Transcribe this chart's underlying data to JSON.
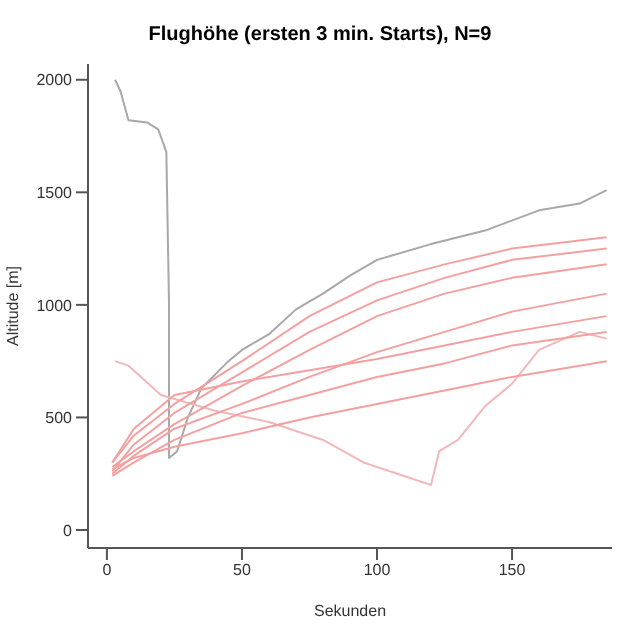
{
  "chart_data": {
    "type": "line",
    "title": "Flughöhe (ersten 3 min. Starts), N=9",
    "xlabel": "Sekunden",
    "ylabel": "Altitude [m]",
    "xlim": [
      -7,
      187
    ],
    "ylim": [
      -80,
      2070
    ],
    "xticks": [
      0,
      50,
      100,
      150
    ],
    "yticks": [
      0,
      500,
      1000,
      1500,
      2000
    ],
    "marker": "none",
    "line_style": "solid",
    "series": [
      {
        "color": "#a8a8a8",
        "x": [
          3,
          5,
          8,
          15,
          19,
          22,
          23,
          23,
          26,
          30,
          35,
          45,
          50,
          60,
          70,
          80,
          90,
          100,
          120,
          140,
          160,
          175,
          185
        ],
        "values": [
          2000,
          1950,
          1820,
          1810,
          1780,
          1680,
          1000,
          320,
          350,
          500,
          630,
          750,
          800,
          870,
          980,
          1050,
          1130,
          1200,
          1270,
          1330,
          1420,
          1450,
          1510
        ]
      },
      {
        "color": "#f0b8b8",
        "x": [
          3,
          8,
          20,
          40,
          60,
          80,
          95,
          120,
          123,
          130,
          140,
          150,
          160,
          175,
          185
        ],
        "values": [
          750,
          730,
          600,
          530,
          480,
          400,
          300,
          200,
          350,
          400,
          550,
          650,
          800,
          880,
          850
        ]
      },
      {
        "color": "#f4a0a0",
        "x": [
          2,
          10,
          25,
          50,
          75,
          100,
          125,
          150,
          185
        ],
        "values": [
          300,
          420,
          560,
          750,
          950,
          1100,
          1180,
          1250,
          1300
        ]
      },
      {
        "color": "#f4a0a0",
        "x": [
          2,
          10,
          25,
          50,
          75,
          100,
          125,
          150,
          185
        ],
        "values": [
          260,
          380,
          520,
          700,
          880,
          1020,
          1120,
          1200,
          1250
        ]
      },
      {
        "color": "#f4a0a0",
        "x": [
          2,
          10,
          25,
          50,
          75,
          100,
          125,
          150,
          185
        ],
        "values": [
          280,
          350,
          470,
          640,
          800,
          950,
          1050,
          1120,
          1180
        ]
      },
      {
        "color": "#f4a0a0",
        "x": [
          2,
          10,
          25,
          50,
          75,
          100,
          125,
          150,
          185
        ],
        "values": [
          250,
          330,
          450,
          560,
          680,
          790,
          880,
          970,
          1050
        ]
      },
      {
        "color": "#f4a0a0",
        "x": [
          2,
          10,
          25,
          50,
          75,
          100,
          125,
          150,
          185
        ],
        "values": [
          300,
          450,
          600,
          660,
          710,
          760,
          820,
          880,
          950
        ]
      },
      {
        "color": "#f4a0a0",
        "x": [
          2,
          10,
          25,
          50,
          75,
          100,
          125,
          150,
          185
        ],
        "values": [
          240,
          300,
          400,
          520,
          600,
          680,
          740,
          820,
          880
        ]
      },
      {
        "color": "#f4a0a0",
        "x": [
          2,
          10,
          25,
          50,
          75,
          100,
          125,
          150,
          185
        ],
        "values": [
          270,
          320,
          370,
          430,
          500,
          560,
          620,
          680,
          750
        ]
      }
    ]
  }
}
